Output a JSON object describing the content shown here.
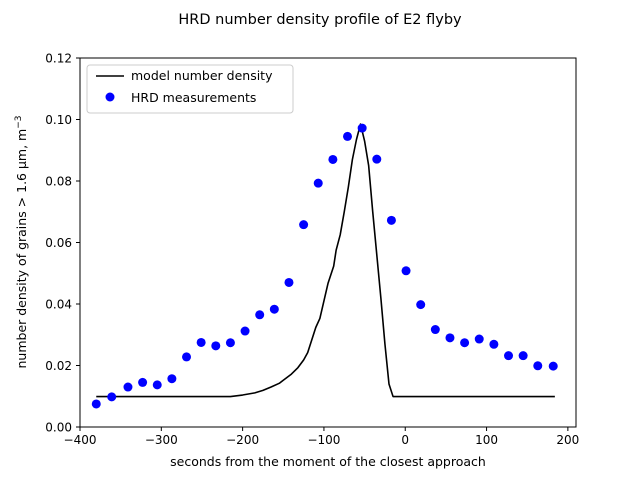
{
  "chart_data": {
    "type": "line+scatter",
    "title": "HRD number density profile of E2 flyby",
    "xlabel": "seconds from the moment of the closest approach",
    "ylabel": "number density of grains > 1.6 μm, m",
    "ylabel_exponent": "−3",
    "xlim": [
      -400,
      210
    ],
    "ylim": [
      0.0,
      0.12
    ],
    "xticks": [
      -400,
      -300,
      -200,
      -100,
      0,
      100,
      200
    ],
    "xtick_labels": [
      "−400",
      "−300",
      "−200",
      "−100",
      "0",
      "100",
      "200"
    ],
    "yticks": [
      0.0,
      0.02,
      0.04,
      0.06,
      0.08,
      0.1,
      0.12
    ],
    "ytick_labels": [
      "0.00",
      "0.02",
      "0.04",
      "0.06",
      "0.08",
      "0.10",
      "0.12"
    ],
    "legend": {
      "position": "top-left",
      "entries": [
        {
          "label": "model number density",
          "kind": "line",
          "color": "#000000"
        },
        {
          "label": "HRD measurements",
          "kind": "marker",
          "color": "#0000ff"
        }
      ]
    },
    "series": [
      {
        "name": "model number density",
        "kind": "line",
        "color": "#000000",
        "x": [
          -380,
          -300,
          -215,
          -200,
          -185,
          -175,
          -165,
          -155,
          -150,
          -140,
          -132,
          -125,
          -120,
          -115,
          -110,
          -105,
          -100,
          -95,
          -88,
          -85,
          -80,
          -75,
          -70,
          -65,
          -60,
          -55,
          -50,
          -45,
          -40,
          -35,
          -30,
          -25,
          -20,
          -15,
          0,
          50,
          100,
          184
        ],
        "y": [
          0.0099,
          0.0099,
          0.0099,
          0.0104,
          0.0111,
          0.0119,
          0.013,
          0.0142,
          0.0152,
          0.0172,
          0.0193,
          0.0218,
          0.0242,
          0.0283,
          0.0324,
          0.0353,
          0.041,
          0.0467,
          0.0523,
          0.0575,
          0.0625,
          0.07,
          0.078,
          0.087,
          0.0935,
          0.0985,
          0.093,
          0.085,
          0.07,
          0.056,
          0.042,
          0.027,
          0.014,
          0.0099,
          0.0099,
          0.0099,
          0.0099,
          0.0099
        ]
      },
      {
        "name": "HRD measurements",
        "kind": "scatter",
        "color": "#0000ff",
        "x": [
          -380,
          -361,
          -341,
          -323,
          -305,
          -287,
          -269,
          -251,
          -233,
          -215,
          -197,
          -179,
          -161,
          -143,
          -125,
          -107,
          -89,
          -71,
          -53,
          -35,
          -17,
          1,
          19,
          37,
          55,
          73,
          91,
          109,
          127,
          145,
          163,
          182
        ],
        "y": [
          0.0075,
          0.0098,
          0.013,
          0.0145,
          0.0137,
          0.0157,
          0.0228,
          0.0275,
          0.0264,
          0.0274,
          0.0312,
          0.0365,
          0.0383,
          0.047,
          0.0658,
          0.0793,
          0.087,
          0.0945,
          0.0972,
          0.0871,
          0.0672,
          0.0508,
          0.0398,
          0.0317,
          0.029,
          0.0274,
          0.0286,
          0.0269,
          0.0232,
          0.0232,
          0.0199,
          0.0198
        ]
      }
    ]
  }
}
